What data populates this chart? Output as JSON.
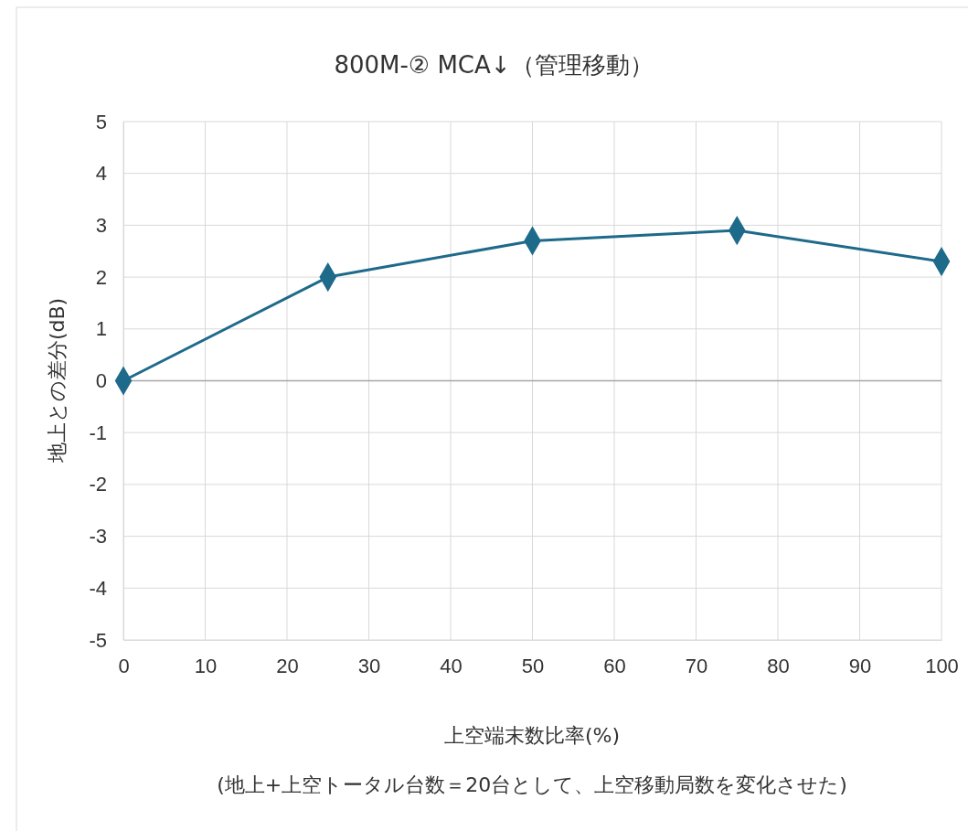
{
  "chart_data": {
    "type": "line",
    "title": "800M-② MCA↓（管理移動）",
    "xlabel": "上空端末数比率(%)",
    "ylabel": "地上との差分(dB)",
    "annotations": [
      "(地上+上空トータル台数＝20台として、上空移動局数を変化させた)"
    ],
    "x": [
      0,
      25,
      50,
      75,
      100
    ],
    "series": [
      {
        "color": "#1e6a8a",
        "values": [
          0,
          2.0,
          2.7,
          2.9,
          2.3
        ]
      }
    ],
    "xlim": [
      0,
      100
    ],
    "xticks": [
      0,
      10,
      20,
      30,
      40,
      50,
      60,
      70,
      80,
      90,
      100
    ],
    "ylim": [
      -5,
      5
    ],
    "yticks": [
      -5,
      -4,
      -3,
      -2,
      -1,
      0,
      1,
      2,
      3,
      4,
      5
    ],
    "grid": true,
    "marker": "diamond",
    "line_style": "solid"
  }
}
